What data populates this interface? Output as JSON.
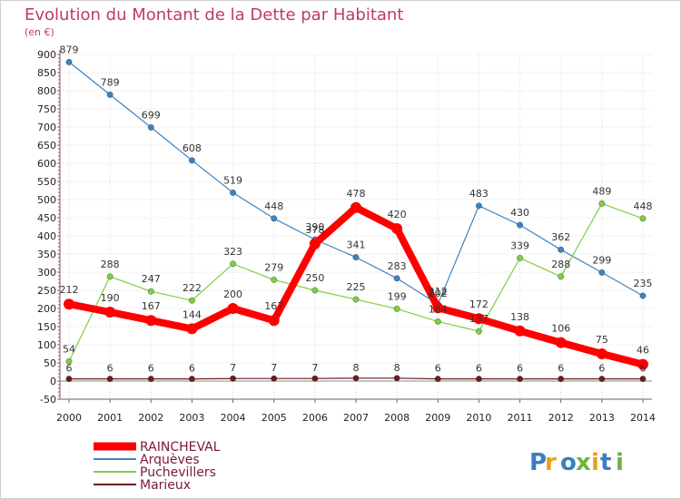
{
  "title": "Evolution du Montant de la Dette par Habitant",
  "subtitle": "(en €)",
  "logo_text": "Proxiti",
  "chart_data": {
    "type": "line",
    "title": "Evolution du Montant de la Dette par Habitant",
    "subtitle": "(en €)",
    "xlabel": "",
    "ylabel": "",
    "x": [
      2000,
      2001,
      2002,
      2003,
      2004,
      2005,
      2006,
      2007,
      2008,
      2009,
      2010,
      2011,
      2012,
      2013,
      2014
    ],
    "ylim": [
      -50,
      900
    ],
    "yticks": [
      -50,
      0,
      50,
      100,
      150,
      200,
      250,
      300,
      350,
      400,
      450,
      500,
      550,
      600,
      650,
      700,
      750,
      800,
      850,
      900
    ],
    "grid": true,
    "legend_position": "bottom-left",
    "series": [
      {
        "name": "RAINCHEVAL",
        "color": "#ff0000",
        "values": [
          212,
          190,
          167,
          144,
          200,
          167,
          378,
          478,
          420,
          202,
          172,
          138,
          106,
          75,
          46
        ],
        "labels": [
          "212",
          "190",
          "167",
          "144",
          "200",
          "167",
          "378",
          "478",
          "420",
          "202",
          "172",
          "138",
          "106",
          "75",
          "46"
        ]
      },
      {
        "name": "Arquèves",
        "color": "#3b84c4",
        "values": [
          879,
          789,
          699,
          608,
          519,
          448,
          390,
          341,
          283,
          212,
          483,
          430,
          362,
          299,
          235
        ],
        "labels": [
          "879",
          "789",
          "699",
          "608",
          "519",
          "448",
          "390",
          "341",
          "283",
          "212",
          "483",
          "430",
          "362",
          "299",
          "235"
        ]
      },
      {
        "name": "Puchevillers",
        "color": "#7fcf3f",
        "values": [
          54,
          288,
          247,
          222,
          323,
          279,
          250,
          225,
          199,
          164,
          137,
          339,
          288,
          489,
          448
        ],
        "labels": [
          "54",
          "288",
          "247",
          "222",
          "323",
          "279",
          "250",
          "225",
          "199",
          "164",
          "137",
          "339",
          "288",
          "489",
          "448"
        ]
      },
      {
        "name": "Marieux",
        "color": "#6b1d1d",
        "values": [
          6,
          6,
          6,
          6,
          7,
          7,
          7,
          8,
          8,
          6,
          6,
          6,
          6,
          6,
          6
        ],
        "labels": [
          "6",
          "6",
          "6",
          "6",
          "7",
          "7",
          "7",
          "8",
          "8",
          "6",
          "6",
          "6",
          "6",
          "6",
          "6"
        ]
      }
    ]
  }
}
